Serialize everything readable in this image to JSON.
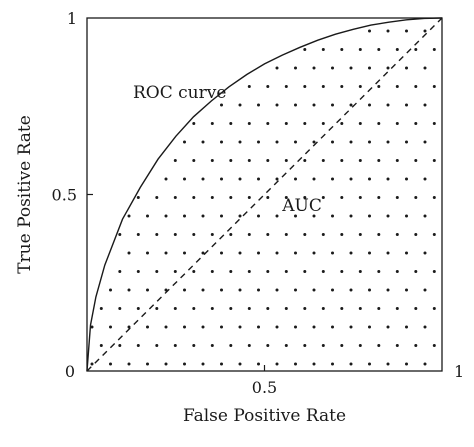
{
  "chart_data": {
    "type": "line",
    "title": "",
    "xlabel": "False Positive Rate",
    "ylabel": "True Positive Rate",
    "xlim": [
      0,
      1
    ],
    "ylim": [
      0,
      1
    ],
    "x_ticks": [
      {
        "value": 0,
        "label": "0"
      },
      {
        "value": 0.5,
        "label": "0.5"
      },
      {
        "value": 1,
        "label": "1"
      }
    ],
    "y_ticks": [
      {
        "value": 0.5,
        "label": "0.5"
      },
      {
        "value": 1,
        "label": "1"
      }
    ],
    "grid": false,
    "series": [
      {
        "style": "solid",
        "x": [
          0,
          0.01,
          0.025,
          0.05,
          0.1,
          0.15,
          0.2,
          0.25,
          0.3,
          0.35,
          0.4,
          0.45,
          0.5,
          0.55,
          0.6,
          0.65,
          0.7,
          0.75,
          0.8,
          0.85,
          0.9,
          0.95,
          1
        ],
        "y": [
          0,
          0.13,
          0.21,
          0.3,
          0.43,
          0.52,
          0.6,
          0.665,
          0.72,
          0.765,
          0.805,
          0.84,
          0.87,
          0.895,
          0.917,
          0.937,
          0.954,
          0.968,
          0.98,
          0.988,
          0.995,
          0.999,
          1
        ]
      },
      {
        "style": "dashed",
        "x": [
          0,
          1
        ],
        "y": [
          0,
          1
        ]
      }
    ],
    "shaded_region": {
      "fill": "dots",
      "between": "curve and x-axis"
    },
    "annotations": [
      {
        "text": "ROC curve",
        "x": 0.2,
        "y": 0.79
      },
      {
        "text": "AUC",
        "x": 0.55,
        "y": 0.47
      }
    ]
  }
}
